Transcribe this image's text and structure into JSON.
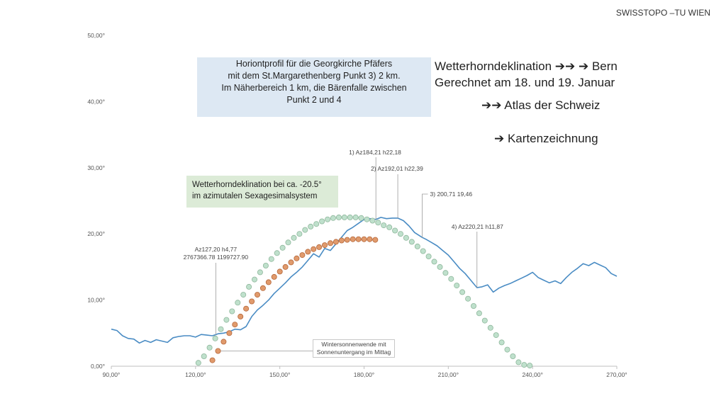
{
  "brand": "SWISSTOPO –TU WIEN",
  "title_box": {
    "line1": "Horiontprofil für die Georgkirche Pfäfers",
    "line2": "mit dem St.Margarethenberg  Punkt 3)  2 km.",
    "line3": "Im Näherbereich 1 km, die Bärenfalle zwischen",
    "line4": "Punkt 2 und 4"
  },
  "label_box": {
    "line1": "Wetterhorndeklination bei ca. -20.5°",
    "line2": "im azimutalen Sexagesimalsystem"
  },
  "winter_box": {
    "line1": "Wintersonnenwende mit",
    "line2": "Sonnenuntergang im Mittag"
  },
  "side_text": {
    "line1": "Wetterhorndeklination ➔➔ ➔ Bern",
    "line2": "Gerechnet am 18. und 19. Januar",
    "line3": "➔➔ Atlas der Schweiz",
    "line4": "➔ Kartenzeichnung"
  },
  "chart_data": {
    "type": "line",
    "xlim": [
      90,
      270
    ],
    "ylim": [
      0,
      50
    ],
    "x_ticks": [
      90,
      120,
      150,
      180,
      210,
      240,
      270
    ],
    "x_tick_labels": [
      "90,00°",
      "120,00°",
      "150,00°",
      "180,00°",
      "210,00°",
      "240,00°",
      "270,00°"
    ],
    "y_ticks": [
      0,
      10,
      20,
      30,
      40,
      50
    ],
    "y_tick_labels": [
      "0,00°",
      "10,00°",
      "20,00°",
      "30,00°",
      "40,00°",
      "50,00°"
    ],
    "grid": false,
    "colors": {
      "horizon": "#4a8cc4",
      "green": "#bfe0cc",
      "green_edge": "#8fb79c",
      "orange": "#e09a6c",
      "orange_edge": "#b5673a",
      "leader": "#9a9a9a",
      "axis": "#bfbfbf"
    },
    "series": [
      {
        "name": "Horizontprofil",
        "style": "line",
        "x": [
          90,
          92,
          94,
          96,
          98,
          100,
          102,
          104,
          106,
          108,
          110,
          112,
          114,
          116,
          118,
          120,
          122,
          124,
          126,
          127.2,
          128,
          130,
          132,
          134,
          136,
          138,
          140,
          142,
          144,
          146,
          148,
          150,
          152,
          154,
          156,
          158,
          160,
          162,
          164,
          166,
          168,
          170,
          172,
          174,
          176,
          178,
          180,
          182,
          184.21,
          186,
          188,
          190,
          192.01,
          194,
          196,
          198,
          200.71,
          202,
          204,
          206,
          208,
          210,
          212,
          214,
          216,
          218,
          220.21,
          222,
          224,
          226,
          228,
          230,
          232,
          234,
          236,
          238,
          240,
          242,
          244,
          246,
          248,
          250,
          252,
          254,
          256,
          258,
          260,
          262,
          264,
          266,
          268,
          270
        ],
        "y": [
          5.6,
          5.4,
          4.6,
          4.2,
          4.1,
          3.5,
          3.9,
          3.6,
          4.0,
          3.8,
          3.6,
          4.3,
          4.5,
          4.6,
          4.6,
          4.4,
          4.8,
          4.7,
          4.6,
          4.77,
          4.9,
          5.0,
          5.2,
          5.6,
          5.5,
          6.0,
          7.5,
          8.5,
          9.2,
          10.0,
          11.0,
          11.8,
          12.6,
          13.5,
          14.2,
          15.0,
          16.0,
          17.0,
          16.5,
          17.8,
          17.5,
          18.5,
          19.5,
          20.5,
          21.0,
          21.6,
          22.18,
          22.3,
          22.18,
          22.5,
          22.3,
          22.39,
          22.39,
          22.0,
          21.2,
          20.2,
          19.46,
          19.2,
          18.7,
          18.2,
          17.5,
          16.8,
          15.8,
          14.8,
          14.0,
          13.0,
          11.87,
          12.0,
          12.3,
          11.2,
          11.8,
          12.2,
          12.5,
          12.9,
          13.3,
          13.7,
          14.2,
          13.4,
          13.0,
          12.6,
          12.9,
          12.5,
          13.4,
          14.2,
          14.8,
          15.5,
          15.2,
          15.7,
          15.3,
          14.9,
          14.0,
          13.6
        ]
      },
      {
        "name": "Wetterhorndeklination -20.5°",
        "style": "dots",
        "x": [
          121,
          123,
          125,
          127,
          129,
          131,
          133,
          135,
          137,
          139,
          141,
          143,
          145,
          147,
          149,
          151,
          153,
          155,
          157,
          159,
          161,
          163,
          165,
          167,
          169,
          171,
          173,
          175,
          177,
          179,
          181,
          183,
          185,
          187,
          189,
          191,
          193,
          195,
          197,
          199,
          201,
          203,
          205,
          207,
          209,
          211,
          213,
          215,
          217,
          219,
          221,
          223,
          225,
          227,
          229,
          231,
          233,
          235,
          237,
          239
        ],
        "y": [
          0.5,
          1.5,
          2.8,
          4.2,
          5.6,
          7.0,
          8.3,
          9.6,
          10.8,
          12.0,
          13.1,
          14.2,
          15.2,
          16.2,
          17.1,
          17.9,
          18.7,
          19.4,
          20.0,
          20.6,
          21.1,
          21.5,
          21.9,
          22.2,
          22.4,
          22.5,
          22.5,
          22.5,
          22.5,
          22.4,
          22.2,
          22.0,
          21.7,
          21.3,
          21.0,
          20.5,
          20.0,
          19.4,
          18.8,
          18.1,
          17.4,
          16.6,
          15.8,
          15.0,
          14.1,
          13.2,
          12.2,
          11.2,
          10.2,
          9.1,
          8.0,
          6.9,
          5.8,
          4.7,
          3.6,
          2.5,
          1.5,
          0.6,
          0.2,
          0.1
        ]
      },
      {
        "name": "Wintersonnenwende",
        "style": "dots",
        "x": [
          126,
          128,
          130,
          132,
          134,
          136,
          138,
          140,
          142,
          144,
          146,
          148,
          150,
          152,
          154,
          156,
          158,
          160,
          162,
          164,
          166,
          168,
          170,
          172,
          174,
          176,
          178,
          180,
          182,
          184
        ],
        "y": [
          0.9,
          2.3,
          3.7,
          5.0,
          6.3,
          7.5,
          8.7,
          9.8,
          10.8,
          11.8,
          12.7,
          13.5,
          14.3,
          15.0,
          15.7,
          16.3,
          16.8,
          17.3,
          17.7,
          18.0,
          18.3,
          18.6,
          18.8,
          19.0,
          19.1,
          19.2,
          19.2,
          19.2,
          19.2,
          19.1
        ]
      }
    ],
    "annotations": [
      {
        "label1": "1) Az184,21 h22,18",
        "label2": "",
        "x": 184.21,
        "y": 22.18
      },
      {
        "label1": "2) Az192,01  h22,39",
        "label2": "",
        "x": 192.01,
        "y": 22.39
      },
      {
        "label1": "3) 200,71 19,46",
        "label2": "",
        "x": 200.71,
        "y": 19.46
      },
      {
        "label1": "4) Az220,21 h11,87",
        "label2": "",
        "x": 220.21,
        "y": 11.87
      },
      {
        "label1": "Az127,20 h4,77",
        "label2": "2767366.78 1199727.90",
        "x": 127.2,
        "y": 4.77
      }
    ]
  }
}
